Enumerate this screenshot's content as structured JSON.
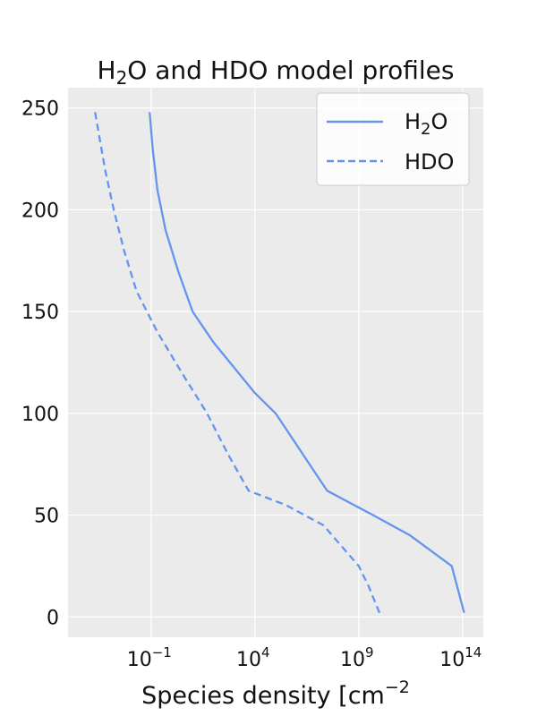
{
  "chart_data": {
    "type": "line",
    "title": {
      "main": "H",
      "sub": "2",
      "rest": "O and HDO model profiles"
    },
    "xlabel": {
      "main": "Species density [cm",
      "sup": "−2"
    },
    "ylabel": "",
    "xscale": "log",
    "xlim": [
      1e-05,
      1000000000000000.0
    ],
    "ylim": [
      -10,
      260
    ],
    "grid": true,
    "legend_position": "top-right",
    "x_ticks": [
      {
        "value": 0.1,
        "base": "10",
        "exp": "−1"
      },
      {
        "value": 10000,
        "base": "10",
        "exp": "4"
      },
      {
        "value": 1000000000,
        "base": "10",
        "exp": "9"
      },
      {
        "value": 100000000000000,
        "base": "10",
        "exp": "14"
      }
    ],
    "y_ticks": [
      {
        "value": 0,
        "label": "0"
      },
      {
        "value": 50,
        "label": "50"
      },
      {
        "value": 100,
        "label": "100"
      },
      {
        "value": 150,
        "label": "150"
      },
      {
        "value": 200,
        "label": "200"
      },
      {
        "value": 250,
        "label": "250"
      }
    ],
    "series": [
      {
        "name": {
          "main": "H",
          "sub": "2",
          "rest": "O"
        },
        "style": "solid",
        "color": "#6495ED",
        "points": [
          [
            120000000000000.0,
            2
          ],
          [
            30000000000000.0,
            25
          ],
          [
            300000000000.0,
            40
          ],
          [
            5000000000.0,
            50
          ],
          [
            30000000.0,
            62
          ],
          [
            2000000.0,
            80
          ],
          [
            100000.0,
            100
          ],
          [
            10000.0,
            110
          ],
          [
            100.0,
            135
          ],
          [
            10,
            150
          ],
          [
            2,
            170
          ],
          [
            0.5,
            190
          ],
          [
            0.2,
            210
          ],
          [
            0.12,
            230
          ],
          [
            0.085,
            248
          ]
        ]
      },
      {
        "name": {
          "main": "HDO",
          "sub": "",
          "rest": ""
        },
        "style": "dashed",
        "color": "#6495ED",
        "points": [
          [
            10000000000.0,
            2
          ],
          [
            3000000000.0,
            15
          ],
          [
            1000000000.0,
            25
          ],
          [
            20000000.0,
            45
          ],
          [
            300000.0,
            55
          ],
          [
            5000.0,
            62
          ],
          [
            500.0,
            80
          ],
          [
            50,
            100
          ],
          [
            3,
            120
          ],
          [
            0.2,
            140
          ],
          [
            0.02,
            160
          ],
          [
            0.005,
            180
          ],
          [
            0.0016,
            200
          ],
          [
            0.0006,
            220
          ],
          [
            0.0002,
            248
          ]
        ]
      }
    ]
  }
}
